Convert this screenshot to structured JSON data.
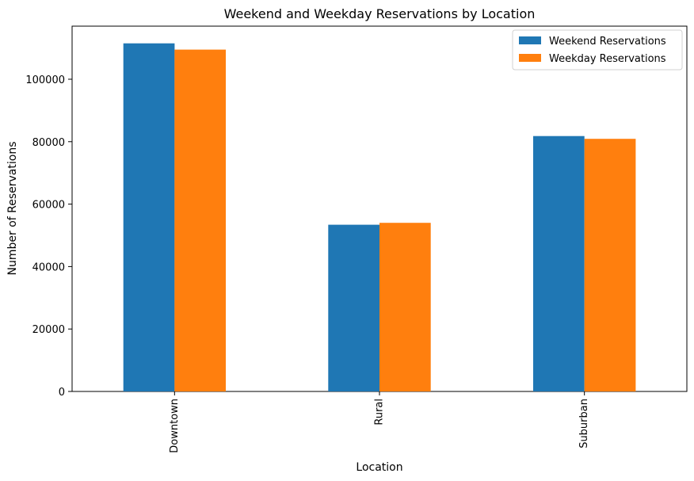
{
  "chart_data": {
    "type": "bar",
    "title": "Weekend and Weekday Reservations by Location",
    "xlabel": "Location",
    "ylabel": "Number of Reservations",
    "categories": [
      "Downtown",
      "Rural",
      "Suburban"
    ],
    "series": [
      {
        "name": "Weekend Reservations",
        "values": [
          111500,
          53400,
          81800
        ],
        "color": "#1f77b4"
      },
      {
        "name": "Weekday Reservations",
        "values": [
          109500,
          54000,
          80900
        ],
        "color": "#ff7f0e"
      }
    ],
    "ylim": [
      0,
      117000
    ],
    "yticks": [
      0,
      20000,
      40000,
      60000,
      80000,
      100000
    ],
    "grid": false,
    "legend_position": "top-right"
  }
}
